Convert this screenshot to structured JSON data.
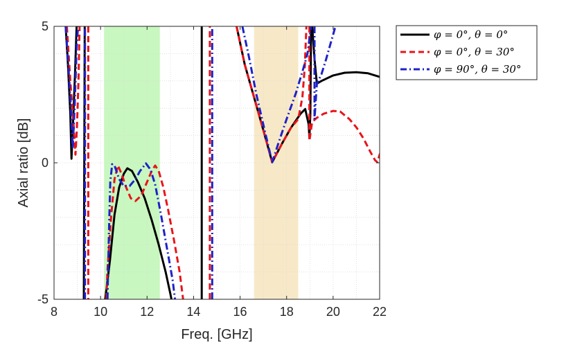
{
  "chart_data": {
    "type": "line",
    "title": "",
    "xlabel": "Freq. [GHz]",
    "ylabel": "Axial ratio [dB]",
    "xlim": [
      8,
      22
    ],
    "ylim": [
      -5,
      5
    ],
    "xticks": [
      8,
      10,
      12,
      14,
      16,
      18,
      20,
      22
    ],
    "yticks": [
      -5,
      0,
      5
    ],
    "xtick_labels": [
      "8",
      "10",
      "12",
      "14",
      "16",
      "18",
      "20",
      "22"
    ],
    "ytick_labels": [
      "-5",
      "0",
      "5"
    ],
    "grid": "minor dotted",
    "legend_position": "outside-top-right",
    "bands": [
      {
        "name": "band-1",
        "x": [
          10.15,
          12.55
        ],
        "color": "#c8f7c0"
      },
      {
        "name": "band-2",
        "x": [
          16.6,
          18.5
        ],
        "color": "#f7e9c8"
      }
    ],
    "series": [
      {
        "name": "φ = 0°, θ = 0°",
        "color": "#000000",
        "style": "solid",
        "segments": [
          [
            [
              8.5,
              5.0
            ],
            [
              8.6,
              3.6
            ],
            [
              8.7,
              1.8
            ],
            [
              8.75,
              0.15
            ],
            [
              8.82,
              1.5
            ],
            [
              8.9,
              3.2
            ],
            [
              8.97,
              5.0
            ]
          ],
          [
            [
              9.28,
              -5.0
            ],
            [
              9.32,
              5.0
            ]
          ],
          [
            [
              10.2,
              -5.0
            ],
            [
              10.4,
              -3.6
            ],
            [
              10.6,
              -1.9
            ],
            [
              10.8,
              -0.9
            ],
            [
              11.0,
              -0.4
            ],
            [
              11.15,
              -0.2
            ],
            [
              11.35,
              -0.3
            ],
            [
              11.6,
              -0.7
            ],
            [
              11.9,
              -1.3
            ],
            [
              12.2,
              -2.1
            ],
            [
              12.5,
              -3.0
            ],
            [
              12.8,
              -4.0
            ],
            [
              13.0,
              -4.8
            ],
            [
              13.05,
              -5.0
            ]
          ],
          [
            [
              14.35,
              -5.0
            ],
            [
              14.35,
              5.0
            ]
          ],
          [
            [
              15.85,
              5.0
            ],
            [
              16.2,
              3.6
            ],
            [
              16.6,
              2.4
            ],
            [
              17.0,
              1.2
            ],
            [
              17.38,
              0.02
            ],
            [
              17.8,
              0.7
            ],
            [
              18.2,
              1.3
            ],
            [
              18.6,
              1.8
            ],
            [
              18.8,
              1.97
            ],
            [
              18.95,
              1.4
            ],
            [
              18.98,
              0.9
            ],
            [
              19.02,
              1.8
            ],
            [
              19.05,
              5.0
            ]
          ],
          [
            [
              19.1,
              5.0
            ],
            [
              19.2,
              3.8
            ],
            [
              19.3,
              2.9
            ],
            [
              19.5,
              3.0
            ],
            [
              20.0,
              3.2
            ],
            [
              20.5,
              3.3
            ],
            [
              21.0,
              3.32
            ],
            [
              21.5,
              3.28
            ],
            [
              22.0,
              3.15
            ]
          ]
        ]
      },
      {
        "name": "φ = 0°, θ = 30°",
        "color": "#e8141a",
        "style": "dashed",
        "segments": [
          [
            [
              8.55,
              5.0
            ],
            [
              8.7,
              3.0
            ],
            [
              8.85,
              1.3
            ],
            [
              8.92,
              0.3
            ],
            [
              8.98,
              1.2
            ],
            [
              9.05,
              3.0
            ],
            [
              9.1,
              5.0
            ]
          ],
          [
            [
              9.47,
              5.0
            ],
            [
              9.47,
              -5.0
            ]
          ],
          [
            [
              10.25,
              -5.0
            ],
            [
              10.3,
              -3.9
            ],
            [
              10.45,
              -2.0
            ],
            [
              10.6,
              -0.6
            ],
            [
              10.75,
              -0.1
            ],
            [
              10.9,
              -0.4
            ],
            [
              11.1,
              -0.9
            ],
            [
              11.3,
              -1.3
            ],
            [
              11.5,
              -1.4
            ],
            [
              11.75,
              -1.2
            ],
            [
              12.0,
              -0.7
            ],
            [
              12.2,
              -0.3
            ],
            [
              12.35,
              -0.1
            ],
            [
              12.5,
              -0.3
            ],
            [
              12.7,
              -0.9
            ],
            [
              12.9,
              -1.7
            ],
            [
              13.15,
              -2.8
            ],
            [
              13.4,
              -4.0
            ],
            [
              13.55,
              -5.0
            ]
          ],
          [
            [
              14.7,
              -5.0
            ],
            [
              14.7,
              5.0
            ]
          ],
          [
            [
              15.85,
              5.0
            ],
            [
              16.2,
              3.6
            ],
            [
              16.6,
              2.4
            ],
            [
              17.0,
              1.2
            ],
            [
              17.38,
              0.02
            ],
            [
              17.8,
              0.7
            ],
            [
              18.2,
              1.3
            ],
            [
              18.5,
              1.6
            ],
            [
              18.68,
              2.4
            ],
            [
              18.78,
              3.5
            ],
            [
              18.85,
              5.0
            ]
          ],
          [
            [
              18.98,
              5.0
            ],
            [
              18.98,
              0.8
            ],
            [
              19.1,
              1.5
            ],
            [
              19.3,
              1.65
            ],
            [
              19.6,
              1.8
            ],
            [
              20.0,
              1.9
            ],
            [
              20.3,
              1.88
            ],
            [
              20.7,
              1.6
            ],
            [
              21.0,
              1.3
            ],
            [
              21.3,
              0.9
            ],
            [
              21.6,
              0.4
            ],
            [
              21.8,
              0.1
            ],
            [
              21.9,
              0.02
            ],
            [
              22.0,
              0.3
            ],
            [
              22.05,
              0.4
            ]
          ]
        ]
      },
      {
        "name": "φ = 90°, θ = 30°",
        "color": "#1e22c8",
        "style": "dashdot",
        "segments": [
          [
            [
              8.5,
              5.0
            ],
            [
              8.62,
              3.5
            ],
            [
              8.72,
              2.1
            ],
            [
              8.8,
              0.5
            ],
            [
              8.88,
              1.9
            ],
            [
              8.97,
              4.2
            ],
            [
              9.03,
              5.0
            ]
          ],
          [
            [
              9.33,
              -5.0
            ],
            [
              9.33,
              5.0
            ]
          ],
          [
            [
              10.3,
              -5.0
            ],
            [
              10.32,
              -4.1
            ],
            [
              10.37,
              -2.2
            ],
            [
              10.42,
              -0.7
            ],
            [
              10.5,
              -0.05
            ],
            [
              10.6,
              -0.1
            ],
            [
              10.8,
              -0.6
            ],
            [
              11.0,
              -0.85
            ],
            [
              11.25,
              -0.85
            ],
            [
              11.5,
              -0.6
            ],
            [
              11.7,
              -0.3
            ],
            [
              11.95,
              -0.02
            ],
            [
              12.15,
              -0.25
            ],
            [
              12.35,
              -0.8
            ],
            [
              12.6,
              -1.9
            ],
            [
              12.85,
              -3.1
            ],
            [
              13.1,
              -4.3
            ],
            [
              13.2,
              -5.0
            ]
          ],
          [
            [
              14.8,
              -5.0
            ],
            [
              14.8,
              5.0
            ]
          ],
          [
            [
              16.1,
              5.0
            ],
            [
              16.4,
              3.8
            ],
            [
              16.7,
              2.5
            ],
            [
              17.0,
              1.4
            ],
            [
              17.38,
              0.02
            ],
            [
              17.7,
              0.85
            ],
            [
              18.0,
              1.6
            ],
            [
              18.4,
              2.55
            ],
            [
              18.7,
              3.4
            ],
            [
              18.9,
              4.0
            ],
            [
              19.05,
              5.0
            ]
          ],
          [
            [
              19.2,
              5.0
            ],
            [
              19.2,
              1.6
            ],
            [
              19.3,
              2.9
            ],
            [
              19.5,
              3.25
            ],
            [
              19.7,
              3.8
            ],
            [
              19.9,
              4.4
            ],
            [
              20.0,
              4.7
            ],
            [
              20.1,
              5.0
            ]
          ]
        ]
      }
    ]
  },
  "legend": {
    "entries": [
      "φ = 0°, θ = 0°",
      "φ = 0°, θ = 30°",
      "φ = 90°, θ = 30°"
    ]
  }
}
